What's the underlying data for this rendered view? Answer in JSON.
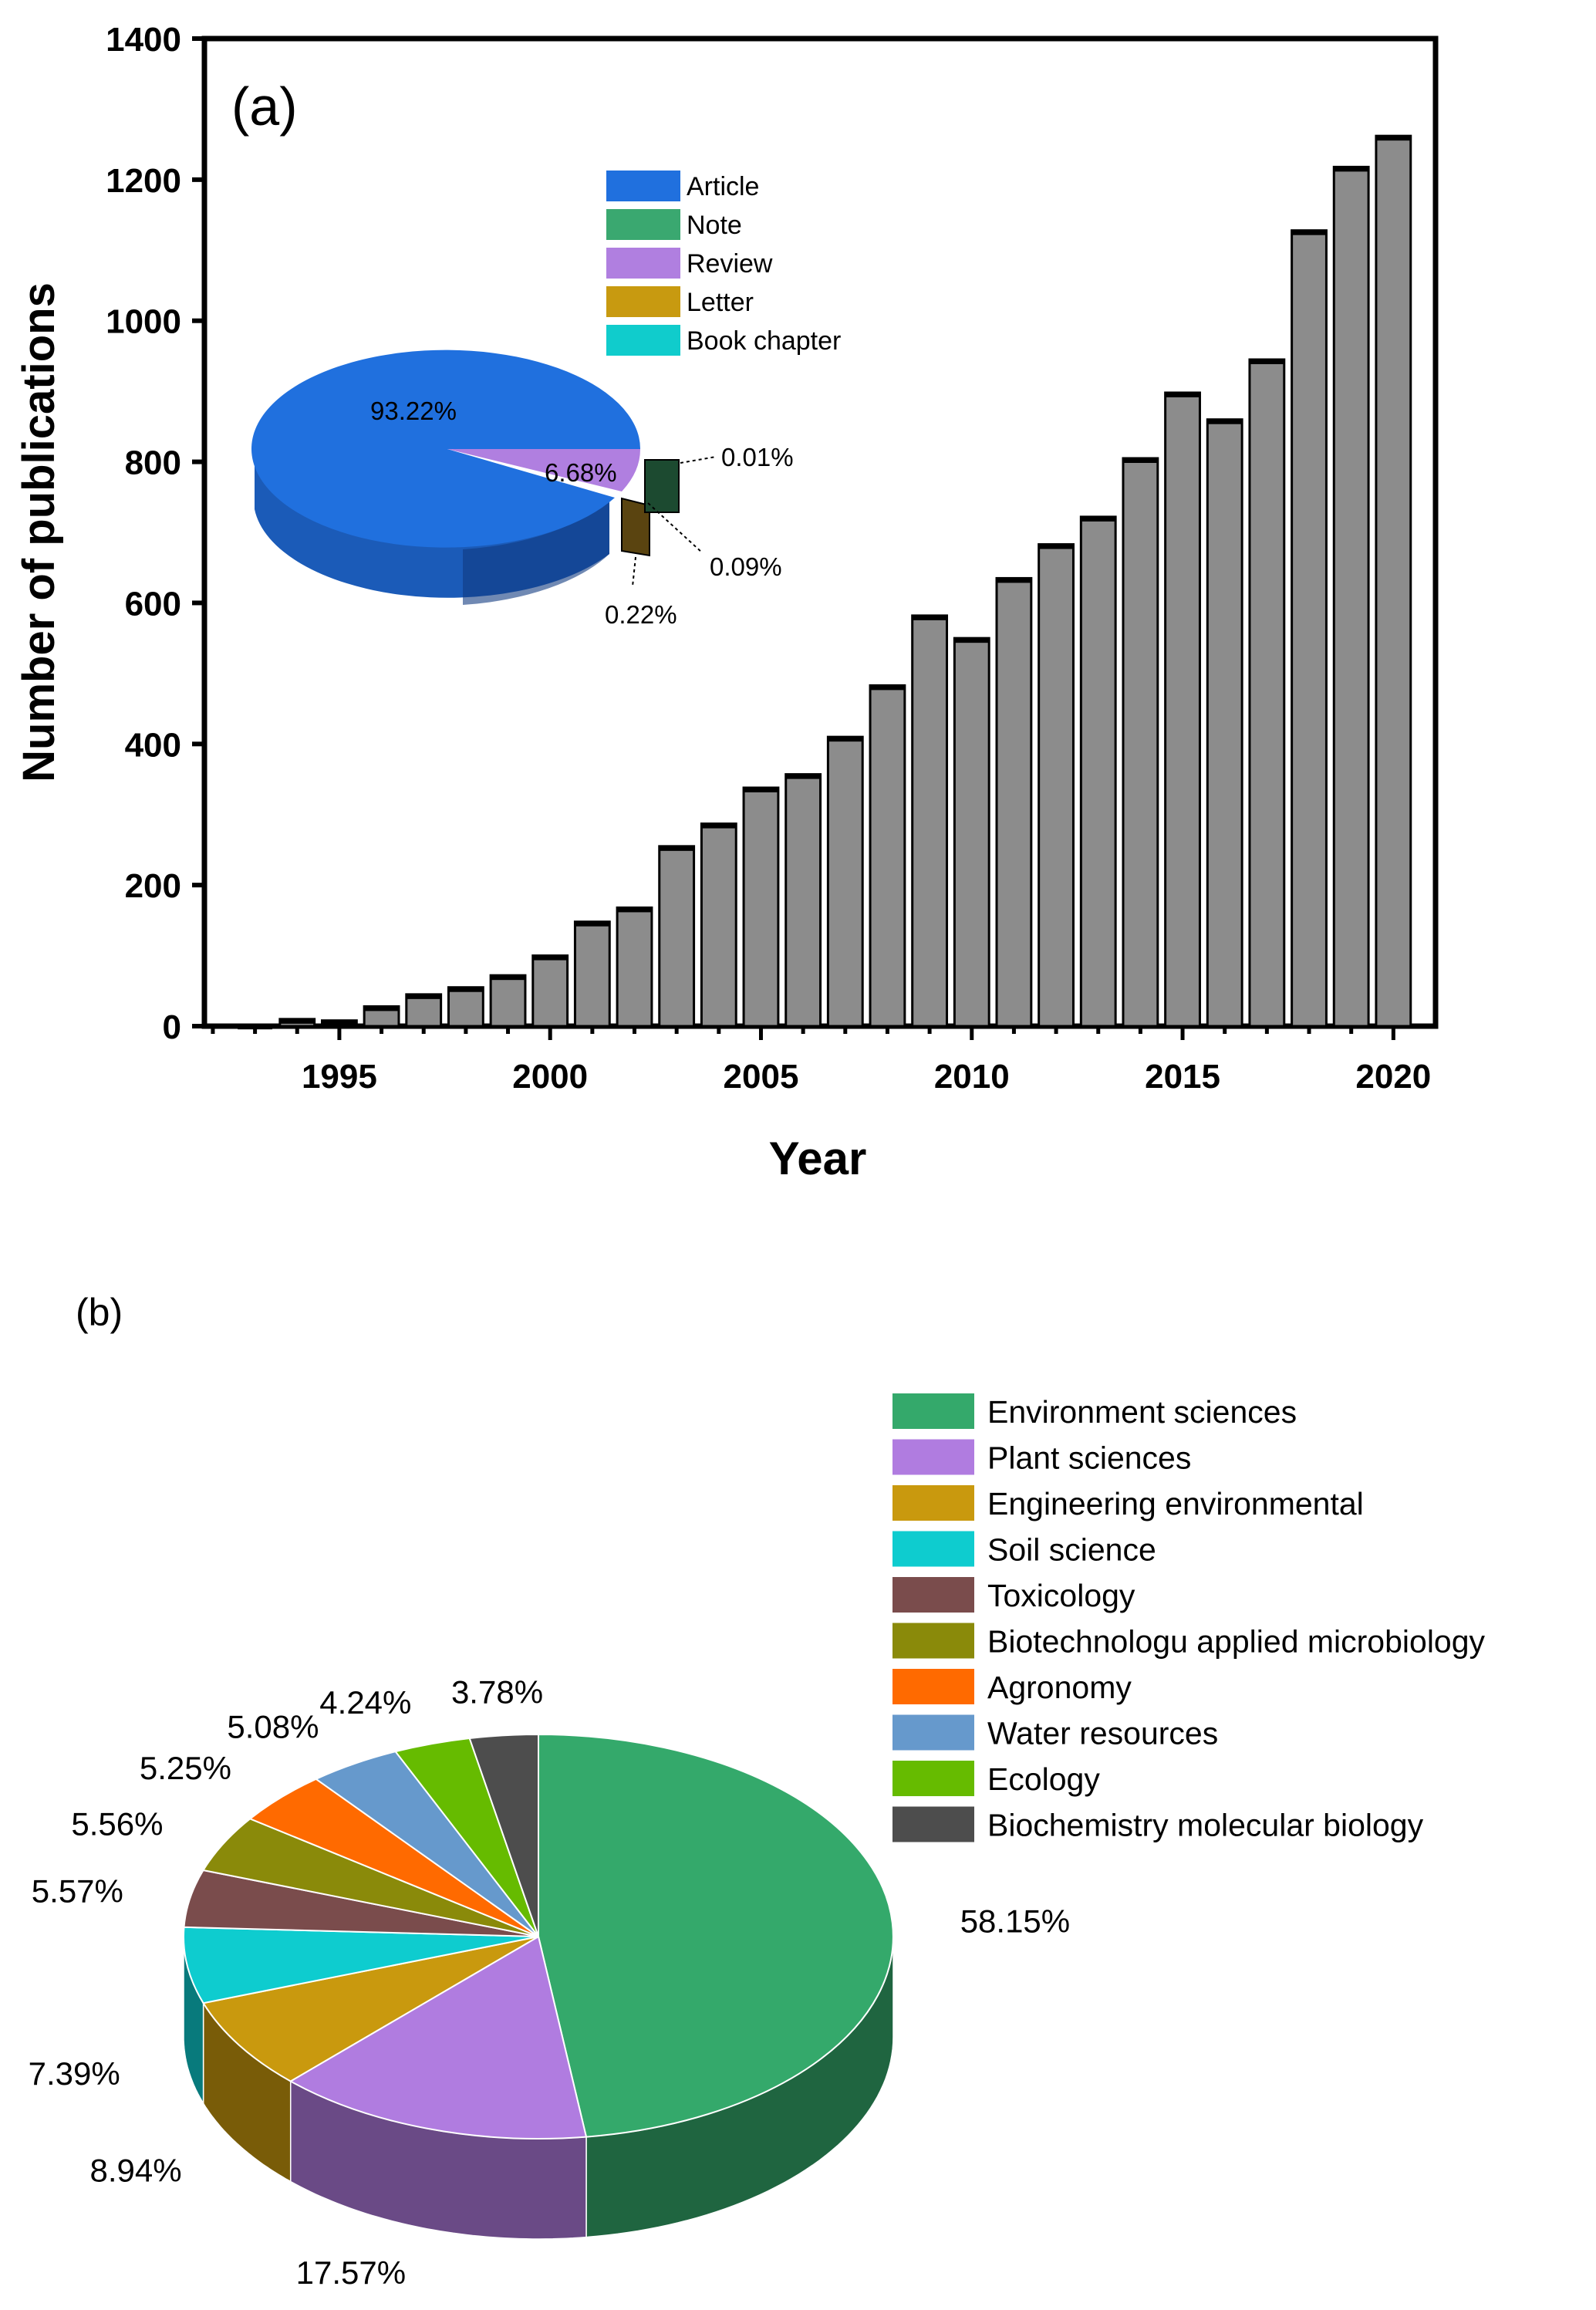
{
  "chart_data": [
    {
      "type": "bar",
      "panel_label": "(a)",
      "xlabel": "Year",
      "ylabel": "Number of publications",
      "ylim": [
        0,
        1400
      ],
      "yticks": [
        0,
        200,
        400,
        600,
        800,
        1000,
        1200,
        1400
      ],
      "xticks": [
        1995,
        2000,
        2005,
        2010,
        2015,
        2020
      ],
      "x": [
        1993,
        1994,
        1995,
        1996,
        1997,
        1998,
        1999,
        2000,
        2001,
        2002,
        2003,
        2004,
        2005,
        2006,
        2007,
        2008,
        2009,
        2010,
        2011,
        2012,
        2013,
        2014,
        2015,
        2016,
        2017,
        2018,
        2019,
        2020
      ],
      "values": [
        2,
        10,
        8,
        28,
        45,
        55,
        72,
        100,
        148,
        168,
        255,
        287,
        338,
        357,
        410,
        483,
        582,
        550,
        635,
        683,
        722,
        805,
        898,
        860,
        945,
        1128,
        1218,
        1262
      ],
      "bar_color": "#8c8c8c",
      "inset_pie": {
        "type": "pie",
        "legend": [
          {
            "label": "Article",
            "color": "#2070de"
          },
          {
            "label": "Note",
            "color": "#3aa870"
          },
          {
            "label": "Review",
            "color": "#b07fe0"
          },
          {
            "label": "Letter",
            "color": "#c89a10"
          },
          {
            "label": "Book chapter",
            "color": "#10cccc"
          }
        ],
        "slice_labels": [
          "93.22%",
          "6.68%",
          "0.01%",
          "0.09%",
          "0.22%"
        ]
      }
    },
    {
      "type": "pie",
      "panel_label": "(b)",
      "slices": [
        {
          "label": "Environment sciences",
          "value": 58.15,
          "text": "58.15%",
          "color": "#34a96b"
        },
        {
          "label": "Plant sciences",
          "value": 17.57,
          "text": "17.57%",
          "color": "#b07ce0"
        },
        {
          "label": "Engineering environmental",
          "value": 8.94,
          "text": "8.94%",
          "color": "#c9990e"
        },
        {
          "label": "Soil science",
          "value": 7.39,
          "text": "7.39%",
          "color": "#0ecccf"
        },
        {
          "label": "Toxicology",
          "value": 5.57,
          "text": "5.57%",
          "color": "#7a4c4c"
        },
        {
          "label": "Biotechnologu applied microbiology",
          "value": 5.56,
          "text": "5.56%",
          "color": "#8a8a0a"
        },
        {
          "label": "Agronomy",
          "value": 5.25,
          "text": "5.25%",
          "color": "#ff6a00"
        },
        {
          "label": "Water resources",
          "value": 5.08,
          "text": "5.08%",
          "color": "#6699cc"
        },
        {
          "label": "Ecology",
          "value": 4.24,
          "text": "4.24%",
          "color": "#66bb00"
        },
        {
          "label": "Biochemistry molecular biology",
          "value": 3.78,
          "text": "3.78%",
          "color": "#4d4d4d"
        }
      ]
    }
  ]
}
